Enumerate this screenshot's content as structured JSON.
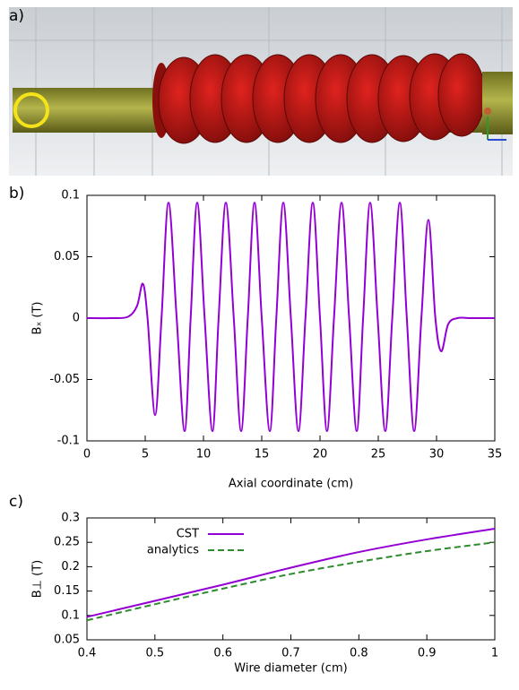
{
  "panels": [
    "a)",
    "b)",
    "c)"
  ],
  "chart_data": [
    {
      "type": "line",
      "x_label": "Axial coordinate (cm)",
      "y_label": "Bₓ (T)",
      "x": [
        0,
        2,
        3.5,
        4.3,
        4.8,
        5.2,
        5.85,
        6.4,
        7.0,
        7.7,
        8.38,
        8.9,
        9.46,
        10.1,
        10.77,
        11.3,
        11.92,
        12.6,
        13.23,
        13.8,
        14.38,
        15.0,
        15.69,
        16.25,
        16.85,
        17.5,
        18.15,
        18.75,
        19.38,
        20.0,
        20.6,
        21.2,
        21.85,
        22.5,
        23.15,
        23.7,
        24.3,
        24.95,
        25.6,
        26.2,
        26.85,
        27.45,
        28.08,
        28.7,
        29.3,
        29.9,
        30.4,
        31.0,
        31.8,
        33,
        35
      ],
      "values": [
        0,
        0,
        0.001,
        0.01,
        0.028,
        0.0,
        -0.079,
        0,
        0.094,
        0,
        -0.092,
        0,
        0.094,
        0,
        -0.092,
        0,
        0.094,
        0,
        -0.092,
        0,
        0.094,
        0,
        -0.092,
        0,
        0.094,
        0,
        -0.092,
        0,
        0.094,
        0,
        -0.092,
        0,
        0.094,
        0,
        -0.092,
        0,
        0.094,
        0,
        -0.092,
        0,
        0.094,
        0,
        -0.092,
        0,
        0.08,
        0,
        -0.027,
        -0.005,
        0,
        0,
        0
      ],
      "color": "#9400d3",
      "xlim": [
        0,
        35
      ],
      "xticks": [
        0,
        5,
        10,
        15,
        20,
        25,
        30,
        35
      ],
      "ylim": [
        -0.1,
        0.1
      ],
      "yticks": [
        -0.1,
        -0.05,
        0,
        0.05,
        0.1
      ]
    },
    {
      "type": "line",
      "x_label": "Wire diameter (cm)",
      "y_label": "B⊥ (T)",
      "x": [
        0.4,
        0.5,
        0.6,
        0.7,
        0.8,
        0.9,
        1.0
      ],
      "series": [
        {
          "name": "CST",
          "color": "#9400d3",
          "linestyle": "solid",
          "values": [
            0.097,
            0.13,
            0.163,
            0.198,
            0.23,
            0.256,
            0.278
          ]
        },
        {
          "name": "analytics",
          "color": "#2e8b2e",
          "linestyle": "dashed",
          "values": [
            0.09,
            0.123,
            0.155,
            0.185,
            0.21,
            0.232,
            0.25
          ]
        }
      ],
      "legend": "upper left",
      "xlim": [
        0.4,
        1
      ],
      "xticks": [
        0.4,
        0.5,
        0.6,
        0.7,
        0.8,
        0.9,
        1
      ],
      "ylim": [
        0.05,
        0.3
      ],
      "yticks": [
        0.05,
        0.1,
        0.15,
        0.2,
        0.25,
        0.3
      ]
    }
  ]
}
